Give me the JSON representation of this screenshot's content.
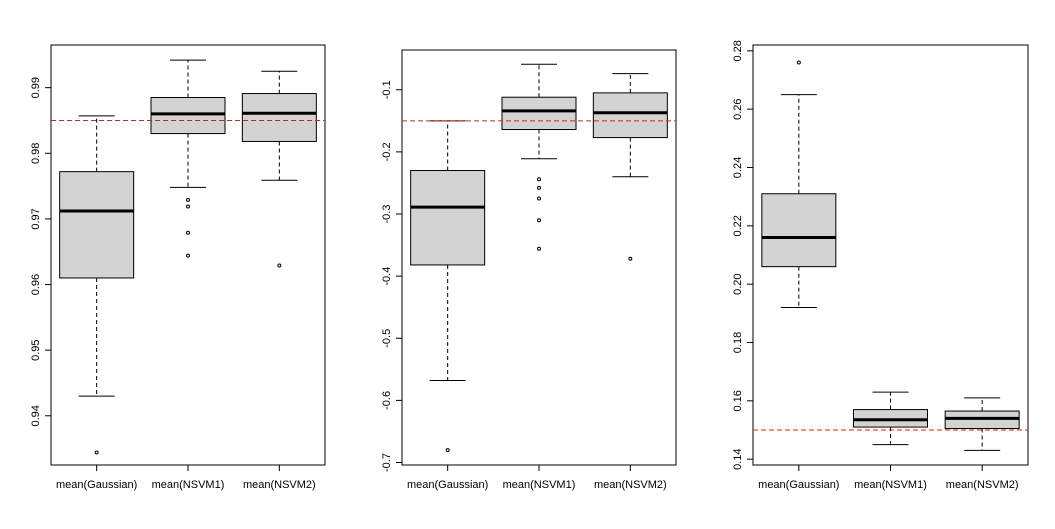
{
  "chart_data": [
    {
      "type": "boxplot",
      "categories": [
        "mean(Gaussian)",
        "mean(NSVM1)",
        "mean(NSVM2)"
      ],
      "ylim": [
        0.9325,
        0.9965
      ],
      "yticks": [
        0.94,
        0.95,
        0.96,
        0.97,
        0.98,
        0.99
      ],
      "ytick_labels": [
        "0.94",
        "0.95",
        "0.96",
        "0.97",
        "0.98",
        "0.99"
      ],
      "reference_line": 0.985,
      "boxes": [
        {
          "whisker_low": 0.943,
          "q1": 0.961,
          "median": 0.9712,
          "q3": 0.9772,
          "whisker_high": 0.9857,
          "outliers": [
            0.9344
          ]
        },
        {
          "whisker_low": 0.9748,
          "q1": 0.983,
          "median": 0.986,
          "q3": 0.9885,
          "whisker_high": 0.9942,
          "outliers": [
            0.9729,
            0.9719,
            0.9679,
            0.9644
          ]
        },
        {
          "whisker_low": 0.9759,
          "q1": 0.9818,
          "median": 0.9861,
          "q3": 0.9891,
          "whisker_high": 0.9925,
          "outliers": [
            0.9629
          ]
        }
      ]
    },
    {
      "type": "boxplot",
      "categories": [
        "mean(Gaussian)",
        "mean(NSVM1)",
        "mean(NSVM2)"
      ],
      "ylim": [
        -0.704,
        -0.036
      ],
      "yticks": [
        -0.7,
        -0.6,
        -0.5,
        -0.4,
        -0.3,
        -0.2,
        -0.1
      ],
      "ytick_labels": [
        "-0.7",
        "-0.6",
        "-0.5",
        "-0.4",
        "-0.3",
        "-0.2",
        "-0.1"
      ],
      "reference_line": -0.15,
      "boxes": [
        {
          "whisker_low": -0.568,
          "q1": -0.382,
          "median": -0.289,
          "q3": -0.23,
          "whisker_high": -0.15,
          "outliers": [
            -0.68
          ]
        },
        {
          "whisker_low": -0.211,
          "q1": -0.164,
          "median": -0.134,
          "q3": -0.112,
          "whisker_high": -0.059,
          "outliers": [
            -0.244,
            -0.258,
            -0.275,
            -0.31,
            -0.356
          ]
        },
        {
          "whisker_low": -0.24,
          "q1": -0.177,
          "median": -0.137,
          "q3": -0.105,
          "whisker_high": -0.074,
          "outliers": [
            -0.372
          ]
        }
      ]
    },
    {
      "type": "boxplot",
      "categories": [
        "mean(Gaussian)",
        "mean(NSVM1)",
        "mean(NSVM2)"
      ],
      "ylim": [
        0.138,
        0.282
      ],
      "yticks": [
        0.14,
        0.16,
        0.18,
        0.2,
        0.22,
        0.24,
        0.26,
        0.28
      ],
      "ytick_labels": [
        "0.14",
        "0.16",
        "0.18",
        "0.20",
        "0.22",
        "0.24",
        "0.26",
        "0.28"
      ],
      "reference_line": 0.15,
      "boxes": [
        {
          "whisker_low": 0.192,
          "q1": 0.206,
          "median": 0.216,
          "q3": 0.231,
          "whisker_high": 0.265,
          "outliers": [
            0.276
          ]
        },
        {
          "whisker_low": 0.145,
          "q1": 0.151,
          "median": 0.1535,
          "q3": 0.157,
          "whisker_high": 0.163,
          "outliers": []
        },
        {
          "whisker_low": 0.143,
          "q1": 0.1505,
          "median": 0.154,
          "q3": 0.1565,
          "whisker_high": 0.161,
          "outliers": []
        }
      ]
    }
  ],
  "colors": {
    "box_fill": "#d3d3d3",
    "reference_line": "#cc2222",
    "ink": "#000000"
  }
}
